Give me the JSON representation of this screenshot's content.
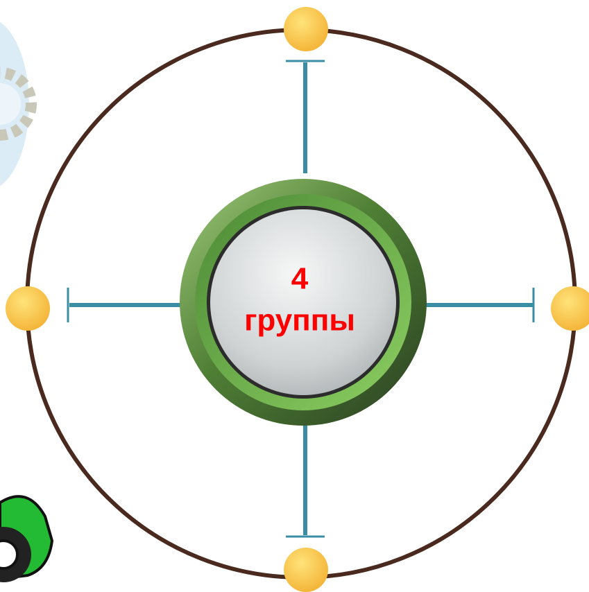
{
  "center": {
    "number": "4",
    "label": "группы"
  }
}
